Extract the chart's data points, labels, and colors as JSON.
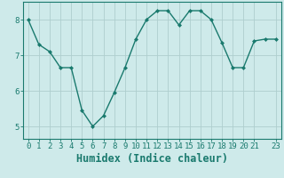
{
  "x": [
    0,
    1,
    2,
    3,
    4,
    5,
    6,
    7,
    8,
    9,
    10,
    11,
    12,
    13,
    14,
    15,
    16,
    17,
    18,
    19,
    20,
    21,
    22,
    23
  ],
  "y": [
    8.0,
    7.3,
    7.1,
    6.65,
    6.65,
    5.45,
    5.0,
    5.3,
    5.95,
    6.65,
    7.45,
    8.0,
    8.25,
    8.25,
    7.85,
    8.25,
    8.25,
    8.0,
    7.35,
    6.65,
    6.65,
    7.4,
    7.45,
    7.45
  ],
  "line_color": "#1a7a6e",
  "marker": "D",
  "marker_size": 2.0,
  "bg_color": "#ceeaea",
  "grid_color": "#aecece",
  "xlabel": "Humidex (Indice chaleur)",
  "xlim": [
    -0.5,
    23.5
  ],
  "ylim": [
    4.65,
    8.5
  ],
  "yticks": [
    5,
    6,
    7,
    8
  ],
  "xticks": [
    0,
    1,
    2,
    3,
    4,
    5,
    6,
    7,
    8,
    9,
    10,
    11,
    12,
    13,
    14,
    15,
    16,
    17,
    18,
    19,
    20,
    21,
    23
  ],
  "tick_label_fontsize": 6.5,
  "xlabel_fontsize": 8.5,
  "line_width": 1.0,
  "spine_color": "#1a7a6e",
  "text_color": "#1a7a6e"
}
